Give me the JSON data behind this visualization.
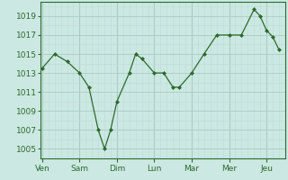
{
  "x_labels": [
    "Ven",
    "Sam",
    "Dim",
    "Lun",
    "Mar",
    "Mer",
    "Jeu"
  ],
  "x_tick_positions": [
    0,
    1,
    2,
    3,
    4,
    5,
    6
  ],
  "data_x": [
    0.0,
    0.33,
    0.67,
    1.0,
    1.25,
    1.5,
    1.67,
    1.83,
    2.0,
    2.33,
    2.5,
    2.67,
    3.0,
    3.25,
    3.5,
    3.67,
    4.0,
    4.33,
    4.67,
    5.0,
    5.33,
    5.67,
    5.83,
    6.0,
    6.17,
    6.33
  ],
  "data_y": [
    1013.5,
    1015.0,
    1014.2,
    1013.0,
    1011.5,
    1007.0,
    1005.0,
    1007.0,
    1010.0,
    1013.0,
    1015.0,
    1014.5,
    1013.0,
    1013.0,
    1011.5,
    1011.5,
    1013.0,
    1015.0,
    1017.0,
    1017.0,
    1017.0,
    1019.7,
    1019.0,
    1017.5,
    1016.8,
    1015.5
  ],
  "line_color": "#2d6a2d",
  "marker": "D",
  "marker_size": 2.0,
  "background_color": "#cce8e2",
  "grid_major_color": "#aaccc6",
  "grid_minor_color": "#bbddd8",
  "tick_label_color": "#2d6a2d",
  "ylim": [
    1004.0,
    1020.5
  ],
  "yticks": [
    1005,
    1007,
    1009,
    1011,
    1013,
    1015,
    1017,
    1019
  ],
  "xlim": [
    -0.05,
    6.5
  ],
  "figsize": [
    3.2,
    2.0
  ],
  "dpi": 100
}
